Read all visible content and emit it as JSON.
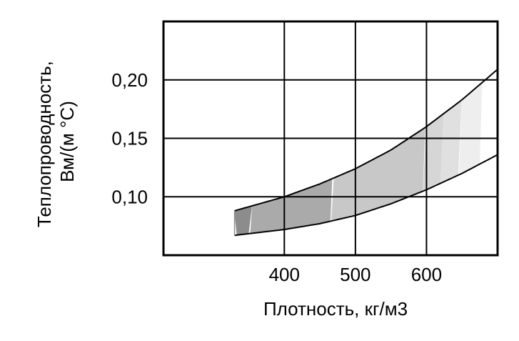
{
  "chart_data": {
    "type": "area",
    "title": "",
    "xlabel": "Плотность, кг/м3",
    "ylabel_lines": [
      "Теплопроводность,",
      "Вм/(м °C)"
    ],
    "xlim": [
      230,
      700
    ],
    "ylim": [
      0.05,
      0.25
    ],
    "x_ticks": [
      400,
      500,
      600
    ],
    "x_tick_labels": [
      "400",
      "500",
      "600"
    ],
    "y_ticks": [
      0.1,
      0.15,
      0.2
    ],
    "y_tick_labels": [
      "0,10",
      "0,15",
      "0,20"
    ],
    "grid": true,
    "series": [
      {
        "x": [
          330,
          400,
          450,
          500,
          550,
          600,
          650,
          700
        ],
        "y": [
          0.088,
          0.1,
          0.111,
          0.124,
          0.14,
          0.16,
          0.183,
          0.209
        ]
      },
      {
        "x": [
          330,
          400,
          450,
          500,
          550,
          600,
          650,
          700
        ],
        "y": [
          0.067,
          0.072,
          0.077,
          0.084,
          0.094,
          0.106,
          0.12,
          0.136
        ]
      }
    ],
    "bands": [
      {
        "x_from": 330,
        "x_to": 355,
        "color": "#8c8c8c"
      },
      {
        "x_from": 355,
        "x_to": 470,
        "color": "#aaaaaa"
      },
      {
        "x_from": 470,
        "x_to": 600,
        "color": "#c8c8c8"
      },
      {
        "x_from": 600,
        "x_to": 625,
        "color": "#d6d6d6"
      },
      {
        "x_from": 625,
        "x_to": 650,
        "color": "#e0e0e0"
      },
      {
        "x_from": 650,
        "x_to": 680,
        "color": "#eeeeee"
      }
    ]
  }
}
